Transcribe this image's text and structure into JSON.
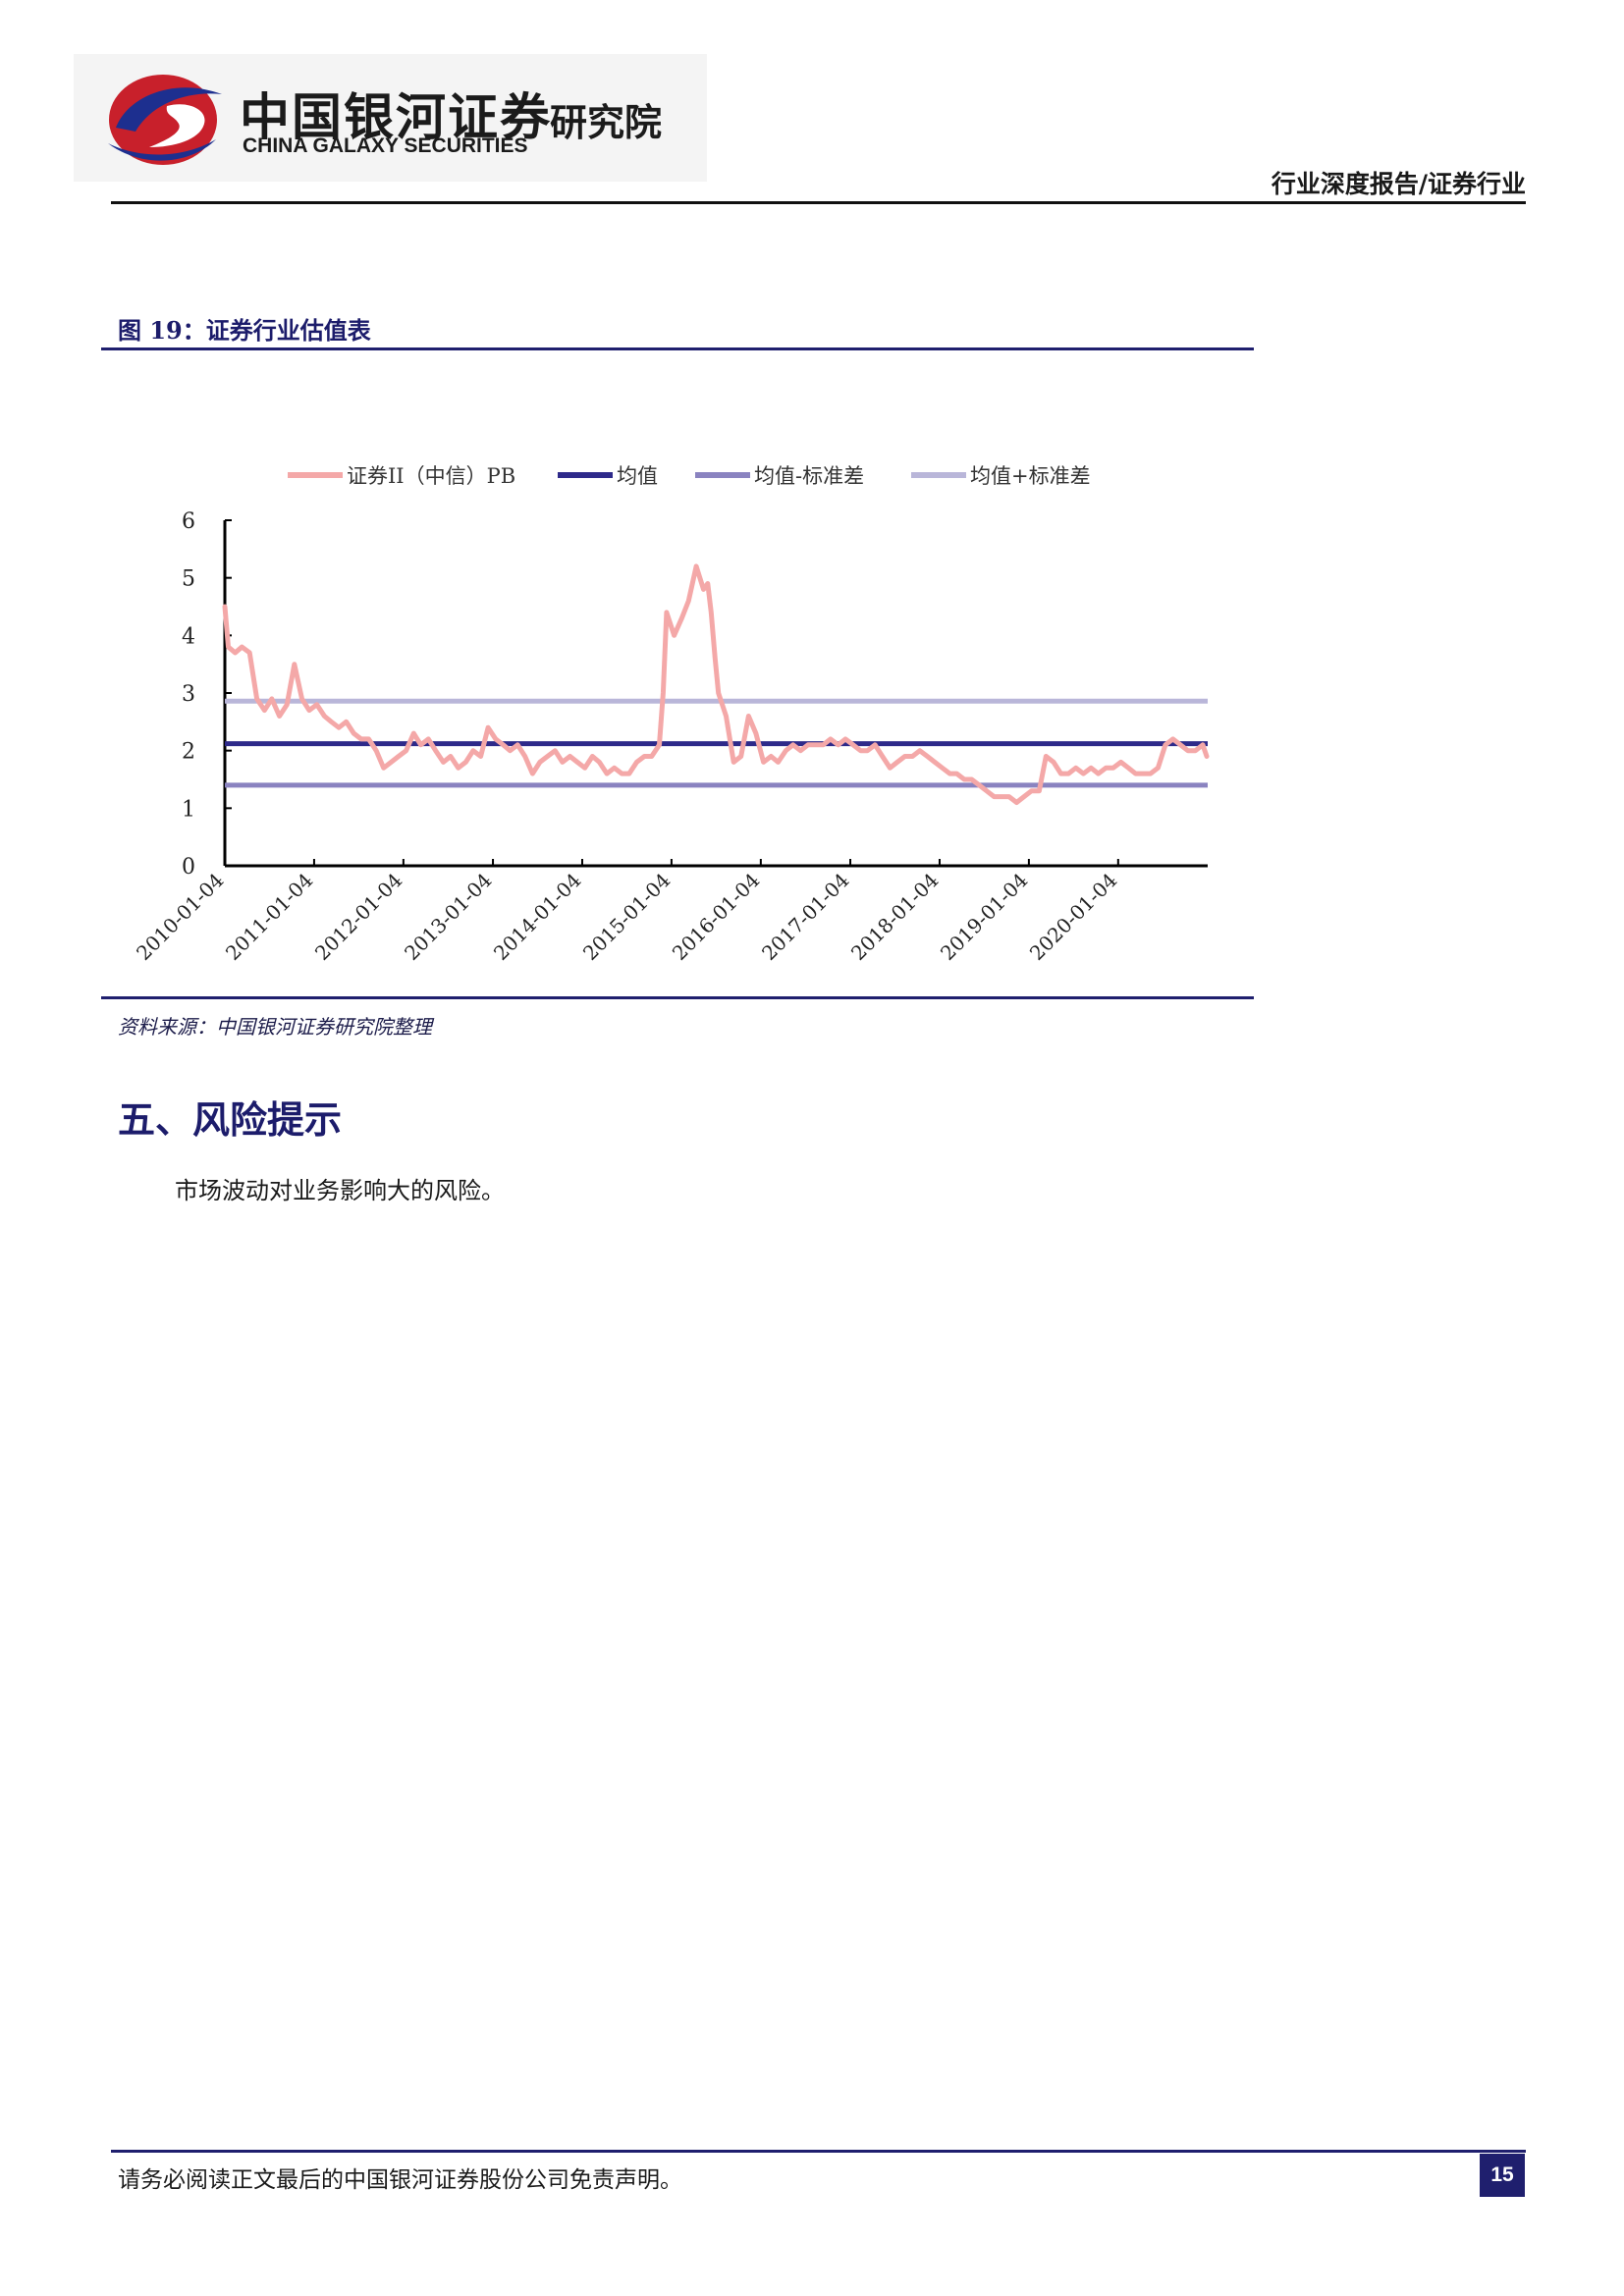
{
  "header": {
    "brand_cn": "中国银河证券",
    "brand_en": "CHINA GALAXY SECURITIES",
    "brand_dept": "研究院",
    "report_type": "行业深度报告/证券行业",
    "logo_icon": "galaxy-logo-icon"
  },
  "figure": {
    "title": "图 19：证券行业估值表",
    "source": "资料来源：中国银河证券研究院整理"
  },
  "chart_data": {
    "type": "line",
    "title": "",
    "xlabel": "",
    "ylabel": "",
    "ylim": [
      0,
      6
    ],
    "yticks": [
      "0",
      "1",
      "2",
      "3",
      "4",
      "5",
      "6"
    ],
    "xlim": [
      "2010-01-04",
      "2021-01-04"
    ],
    "xticks": [
      "2010-01-04",
      "2011-01-04",
      "2012-01-04",
      "2013-01-04",
      "2014-01-04",
      "2015-01-04",
      "2016-01-04",
      "2017-01-04",
      "2018-01-04",
      "2019-01-04",
      "2020-01-04"
    ],
    "grid": false,
    "legend_position": "top",
    "series": [
      {
        "name": "证券II（中信）PB",
        "color": "#f4a8a8",
        "x": [
          "2010-01-04",
          "2010-01-18",
          "2010-02-15",
          "2010-03-15",
          "2010-04-15",
          "2010-05-15",
          "2010-06-15",
          "2010-07-15",
          "2010-08-15",
          "2010-09-15",
          "2010-10-15",
          "2010-11-15",
          "2010-12-15",
          "2011-01-15",
          "2011-02-15",
          "2011-03-15",
          "2011-04-15",
          "2011-05-15",
          "2011-06-15",
          "2011-07-15",
          "2011-08-15",
          "2011-09-15",
          "2011-10-15",
          "2011-11-15",
          "2011-12-15",
          "2012-01-15",
          "2012-02-15",
          "2012-03-15",
          "2012-04-15",
          "2012-05-15",
          "2012-06-15",
          "2012-07-15",
          "2012-08-15",
          "2012-09-15",
          "2012-10-15",
          "2012-11-15",
          "2012-12-15",
          "2013-01-15",
          "2013-02-15",
          "2013-03-15",
          "2013-04-15",
          "2013-05-15",
          "2013-06-15",
          "2013-07-15",
          "2013-08-15",
          "2013-09-15",
          "2013-10-15",
          "2013-11-15",
          "2013-12-15",
          "2014-01-15",
          "2014-02-15",
          "2014-03-15",
          "2014-04-15",
          "2014-05-15",
          "2014-06-15",
          "2014-07-15",
          "2014-08-15",
          "2014-09-15",
          "2014-10-15",
          "2014-11-15",
          "2014-12-01",
          "2014-12-15",
          "2015-01-15",
          "2015-02-15",
          "2015-03-15",
          "2015-04-15",
          "2015-05-15",
          "2015-06-01",
          "2015-06-15",
          "2015-07-01",
          "2015-07-15",
          "2015-08-15",
          "2015-09-15",
          "2015-10-15",
          "2015-11-15",
          "2015-12-15",
          "2016-01-15",
          "2016-02-15",
          "2016-03-15",
          "2016-04-15",
          "2016-05-15",
          "2016-06-15",
          "2016-07-15",
          "2016-08-15",
          "2016-09-15",
          "2016-10-15",
          "2016-11-15",
          "2016-12-15",
          "2017-01-15",
          "2017-02-15",
          "2017-03-15",
          "2017-04-15",
          "2017-05-15",
          "2017-06-15",
          "2017-07-15",
          "2017-08-15",
          "2017-09-15",
          "2017-10-15",
          "2017-11-15",
          "2017-12-15",
          "2018-01-15",
          "2018-02-15",
          "2018-03-15",
          "2018-04-15",
          "2018-05-15",
          "2018-06-15",
          "2018-07-15",
          "2018-08-15",
          "2018-09-15",
          "2018-10-15",
          "2018-11-15",
          "2018-12-15",
          "2019-01-15",
          "2019-02-15",
          "2019-03-15",
          "2019-04-15",
          "2019-05-15",
          "2019-06-15",
          "2019-07-15",
          "2019-08-15",
          "2019-09-15",
          "2019-10-15",
          "2019-11-15",
          "2019-12-15",
          "2020-01-15",
          "2020-02-15",
          "2020-03-15",
          "2020-04-15",
          "2020-05-15",
          "2020-06-15",
          "2020-07-15",
          "2020-08-15",
          "2020-09-15",
          "2020-10-15",
          "2020-11-15",
          "2020-12-15",
          "2020-12-31"
        ],
        "values": [
          4.5,
          3.8,
          3.7,
          3.8,
          3.7,
          2.9,
          2.7,
          2.9,
          2.6,
          2.8,
          3.5,
          2.9,
          2.7,
          2.8,
          2.6,
          2.5,
          2.4,
          2.5,
          2.3,
          2.2,
          2.2,
          2.0,
          1.7,
          1.8,
          1.9,
          2.0,
          2.3,
          2.1,
          2.2,
          2.0,
          1.8,
          1.9,
          1.7,
          1.8,
          2.0,
          1.9,
          2.4,
          2.2,
          2.1,
          2.0,
          2.1,
          1.9,
          1.6,
          1.8,
          1.9,
          2.0,
          1.8,
          1.9,
          1.8,
          1.7,
          1.9,
          1.8,
          1.6,
          1.7,
          1.6,
          1.6,
          1.8,
          1.9,
          1.9,
          2.1,
          3.0,
          4.4,
          4.0,
          4.3,
          4.6,
          5.2,
          4.8,
          4.9,
          4.4,
          3.6,
          3.0,
          2.6,
          1.8,
          1.9,
          2.6,
          2.3,
          1.8,
          1.9,
          1.8,
          2.0,
          2.1,
          2.0,
          2.1,
          2.1,
          2.1,
          2.2,
          2.1,
          2.2,
          2.1,
          2.0,
          2.0,
          2.1,
          1.9,
          1.7,
          1.8,
          1.9,
          1.9,
          2.0,
          1.9,
          1.8,
          1.7,
          1.6,
          1.6,
          1.5,
          1.5,
          1.4,
          1.3,
          1.2,
          1.2,
          1.2,
          1.1,
          1.2,
          1.3,
          1.3,
          1.9,
          1.8,
          1.6,
          1.6,
          1.7,
          1.6,
          1.7,
          1.6,
          1.7,
          1.7,
          1.8,
          1.7,
          1.6,
          1.6,
          1.6,
          1.7,
          2.1,
          2.2,
          2.1,
          2.0,
          2.0,
          2.1,
          1.9
        ]
      },
      {
        "name": "均值",
        "color": "#2e2a8a",
        "values": [
          2.12
        ]
      },
      {
        "name": "均值-标准差",
        "color": "#8a83c0",
        "values": [
          1.4
        ]
      },
      {
        "name": "均值+标准差",
        "color": "#b9b6d9",
        "values": [
          2.86
        ]
      }
    ]
  },
  "section": {
    "heading": "五、风险提示",
    "body": "市场波动对业务影响大的风险。"
  },
  "footer": {
    "disclaimer": "请务必阅读正文最后的中国银河证券股份公司免责声明。",
    "page_number": "15"
  }
}
